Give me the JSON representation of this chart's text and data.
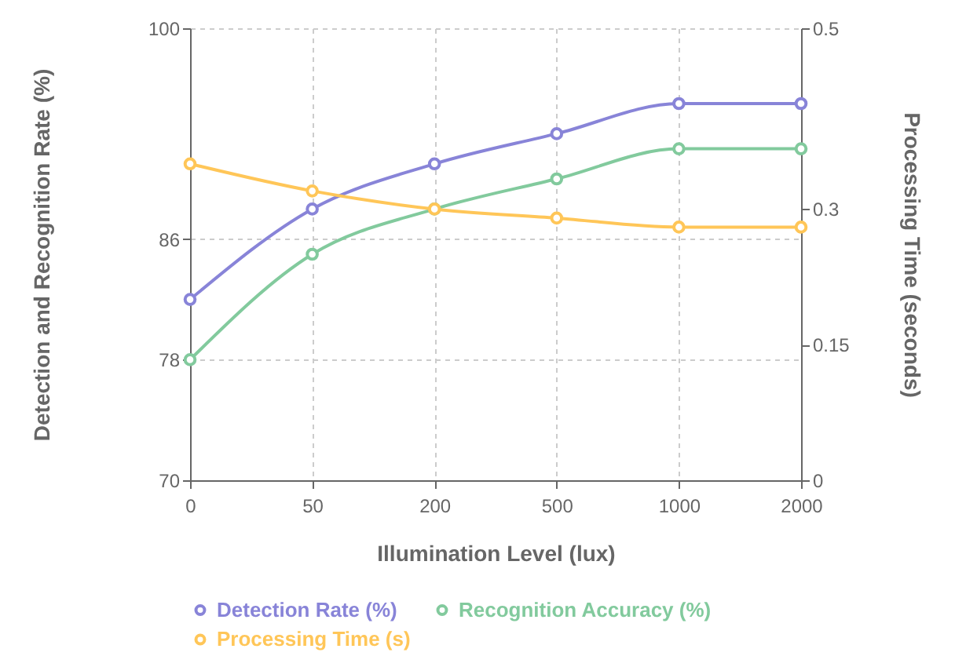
{
  "chart_data": {
    "type": "line",
    "xlabel": "Illumination Level (lux)",
    "ylabel": "Detection and Recognition Rate (%)",
    "y2label": "Processing Time (seconds)",
    "categories": [
      "0",
      "50",
      "200",
      "500",
      "1000",
      "2000"
    ],
    "series": [
      {
        "name": "Detection Rate (%)",
        "color": "#8884d8",
        "values": [
          82,
          88,
          91,
          93,
          95,
          95
        ]
      },
      {
        "name": "Recognition Accuracy (%)",
        "color": "#82ca9d",
        "values": [
          78,
          85,
          88,
          90,
          92,
          92
        ]
      },
      {
        "name": "Processing Time (s)",
        "color": "#ffc658",
        "values": [
          0.35,
          0.32,
          0.3,
          0.29,
          0.28,
          0.28
        ],
        "axis": "y2"
      }
    ],
    "ylim": [
      70,
      100
    ],
    "yticks": [
      70,
      78,
      86,
      100
    ],
    "y2lim": [
      0,
      0.5
    ],
    "y2ticks": [
      0,
      0.15,
      0.3,
      0.5
    ],
    "grid": true,
    "legend": "bottom",
    "marker": "circle",
    "line_style": "solid"
  }
}
